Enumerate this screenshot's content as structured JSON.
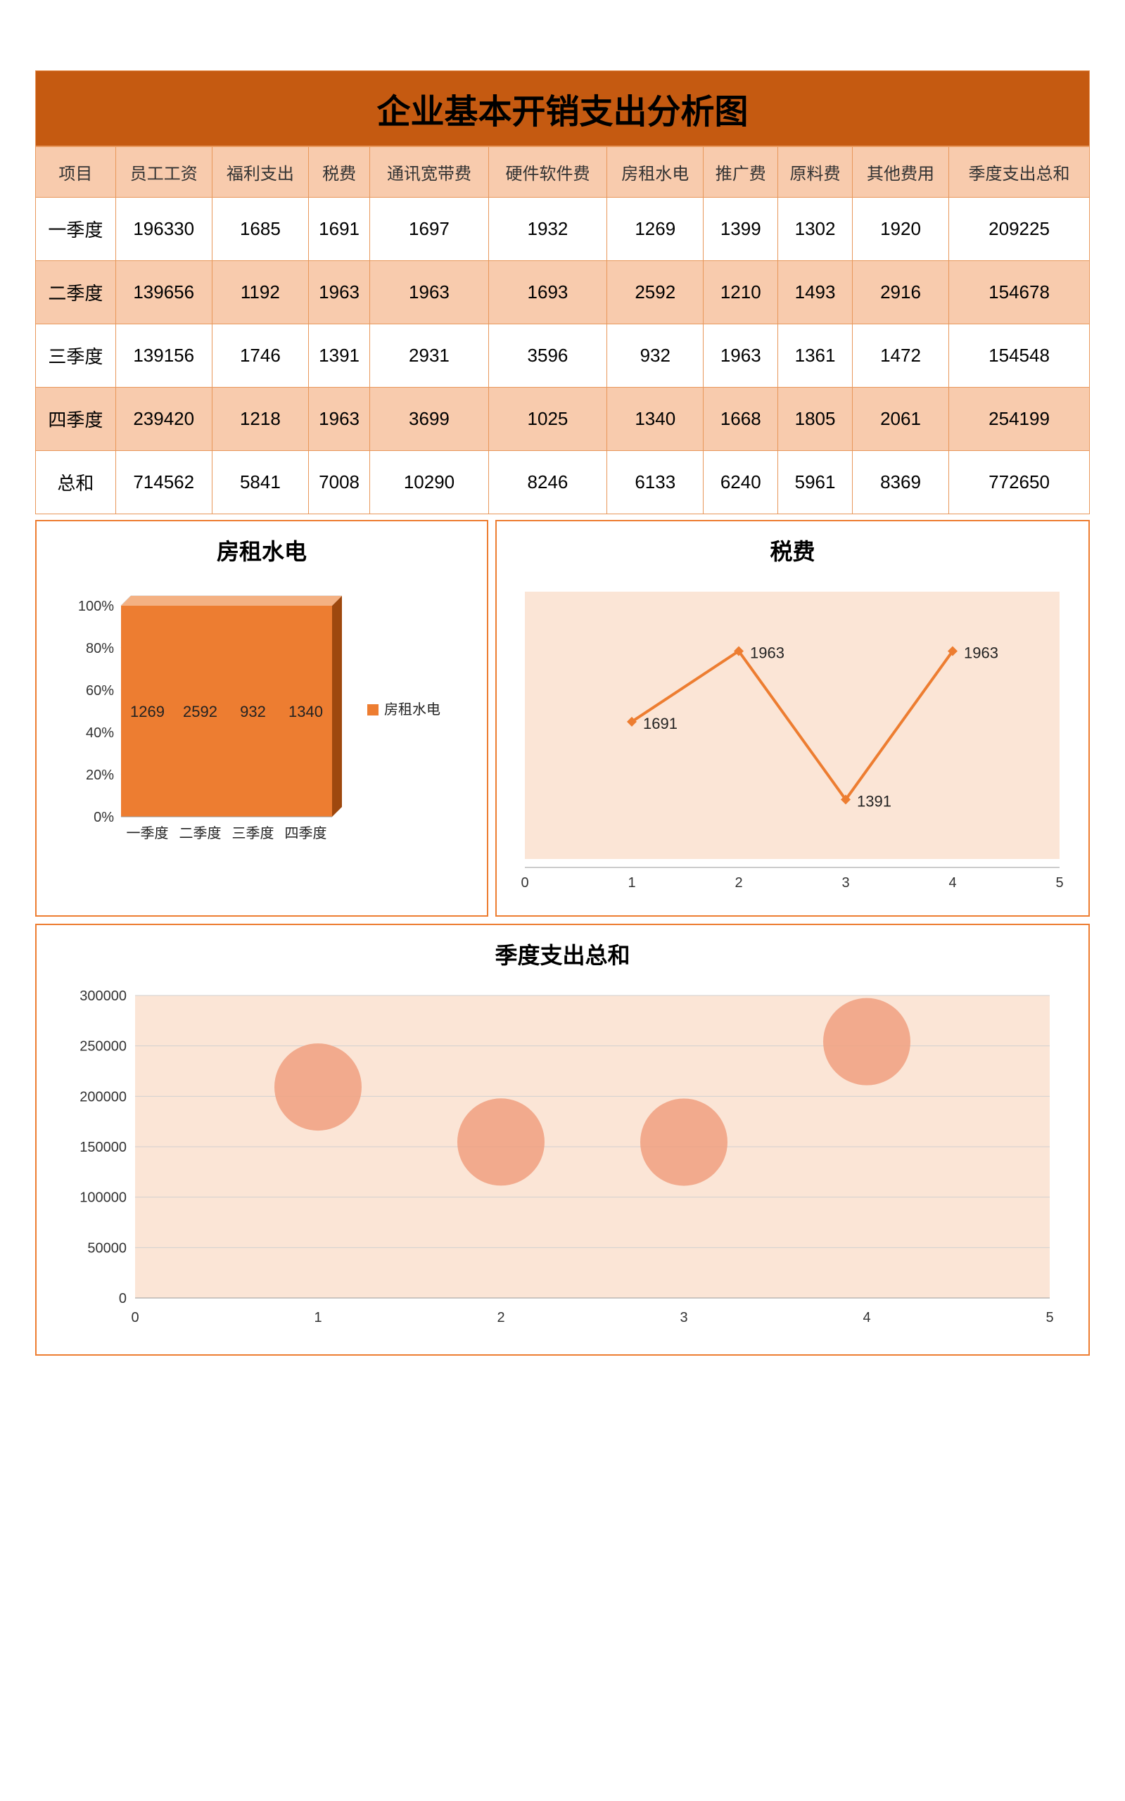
{
  "title": "企业基本开销支出分析图",
  "table": {
    "columns": [
      "项目",
      "员工工资",
      "福利支出",
      "税费",
      "通讯宽带费",
      "硬件软件费",
      "房租水电",
      "推广费",
      "原料费",
      "其他费用",
      "季度支出总和"
    ],
    "rows": [
      [
        "一季度",
        "196330",
        "1685",
        "1691",
        "1697",
        "1932",
        "1269",
        "1399",
        "1302",
        "1920",
        "209225"
      ],
      [
        "二季度",
        "139656",
        "1192",
        "1963",
        "1963",
        "1693",
        "2592",
        "1210",
        "1493",
        "2916",
        "154678"
      ],
      [
        "三季度",
        "139156",
        "1746",
        "1391",
        "2931",
        "3596",
        "932",
        "1963",
        "1361",
        "1472",
        "154548"
      ],
      [
        "四季度",
        "239420",
        "1218",
        "1963",
        "3699",
        "1025",
        "1340",
        "1668",
        "1805",
        "2061",
        "254199"
      ],
      [
        "总和",
        "714562",
        "5841",
        "7008",
        "10290",
        "8246",
        "6133",
        "6240",
        "5961",
        "8369",
        "772650"
      ]
    ],
    "header_bg": "#f8cbad",
    "row_odd_bg": "#ffffff",
    "row_even_bg": "#f8cbad",
    "border_color": "#e8975a",
    "title_bg": "#c55a11",
    "header_fontsize": 24,
    "cell_fontsize": 26
  },
  "chart_rent": {
    "type": "bar3d-stacked100",
    "title": "房租水电",
    "legend_label": "房租水电",
    "categories": [
      "一季度",
      "二季度",
      "三季度",
      "四季度"
    ],
    "values": [
      1269,
      2592,
      932,
      1340
    ],
    "y_ticks": [
      "0%",
      "20%",
      "40%",
      "60%",
      "80%",
      "100%"
    ],
    "bar_color": "#ed7d31",
    "bar_side_color": "#9e480e",
    "grid_color": "#d0d0d0",
    "text_color": "#333333",
    "title_fontsize": 32,
    "label_fontsize": 20
  },
  "chart_tax": {
    "type": "line",
    "title": "税费",
    "x": [
      1,
      2,
      3,
      4
    ],
    "y": [
      1691,
      1963,
      1391,
      1963
    ],
    "labels": [
      "1691",
      "1963",
      "1391",
      "1963"
    ],
    "xlim": [
      0,
      5
    ],
    "x_ticks": [
      0,
      1,
      2,
      3,
      4,
      5
    ],
    "line_color": "#ed7d31",
    "line_width": 4,
    "marker": "diamond",
    "marker_size": 14,
    "marker_color": "#ed7d31",
    "plot_bg": "#fbe5d6",
    "title_fontsize": 32,
    "label_fontsize": 22
  },
  "chart_total": {
    "type": "bubble",
    "title": "季度支出总和",
    "x": [
      1,
      2,
      3,
      4
    ],
    "y": [
      209225,
      154678,
      154548,
      254199
    ],
    "bubble_radius": 62,
    "bubble_color": "#f0a080",
    "bubble_opacity": 0.85,
    "xlim": [
      0,
      5
    ],
    "ylim": [
      0,
      300000
    ],
    "x_ticks": [
      0,
      1,
      2,
      3,
      4,
      5
    ],
    "y_ticks": [
      0,
      50000,
      100000,
      150000,
      200000,
      250000,
      300000
    ],
    "plot_bg": "#fbe5d6",
    "grid_color": "#d0d0d0",
    "title_fontsize": 32,
    "label_fontsize": 22
  }
}
